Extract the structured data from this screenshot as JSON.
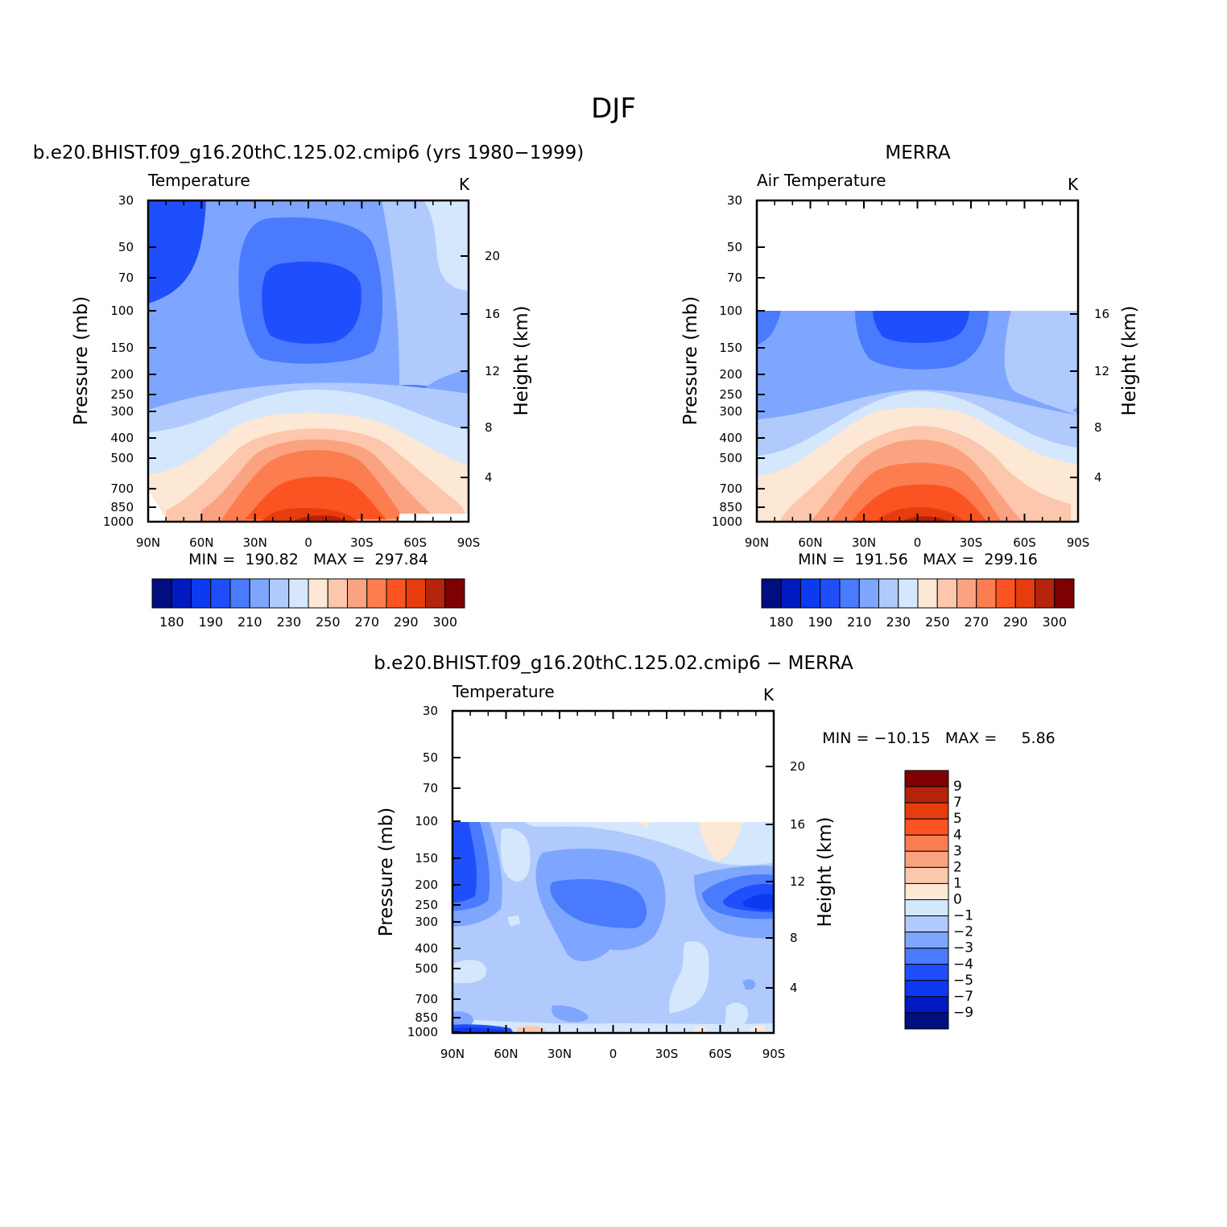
{
  "page_title": "DJF",
  "colors": {
    "main_scale": [
      "#000e7f",
      "#001ac1",
      "#0b3af0",
      "#1f4ffc",
      "#4a7bff",
      "#7fa6ff",
      "#b1cafd",
      "#d5e7fd",
      "#fde7d5",
      "#fcc7ac",
      "#fba281",
      "#fb7d50",
      "#fb5322",
      "#e63c0e",
      "#b4230a",
      "#7f0000"
    ],
    "diff_scale": [
      "#000e7f",
      "#001ac1",
      "#0b3af0",
      "#1f4ffc",
      "#4a7bff",
      "#7fa6ff",
      "#b1cafd",
      "#d5e7fd",
      "#fde7d5",
      "#fcc7ac",
      "#fba281",
      "#fb7d50",
      "#fb5322",
      "#e63c0e",
      "#b4230a",
      "#7f0000"
    ]
  },
  "chart_data": [
    {
      "type": "heatmap",
      "title": "b.e20.BHIST.f09_g16.20thC.125.02.cmip6 (yrs 1980−1999)",
      "left_label": "Temperature",
      "units": "K",
      "xlabel": "",
      "ylabel": "Pressure (mb)",
      "ylabel_right": "Height (km)",
      "x_ticks": [
        "90N",
        "60N",
        "30N",
        "0",
        "30S",
        "60S",
        "90S"
      ],
      "y_ticks": [
        "30",
        "50",
        "70",
        "100",
        "150",
        "200",
        "250",
        "300",
        "400",
        "500",
        "700",
        "850",
        "1000"
      ],
      "y_ticks_right": [
        "20",
        "16",
        "12",
        "8",
        "4"
      ],
      "x_range": [
        90,
        -90
      ],
      "y_range_mb": [
        1000,
        30
      ],
      "min": 190.82,
      "max": 297.84,
      "stats": "MIN =  190.82   MAX =  297.84",
      "colorbar_labels": [
        "180",
        "190",
        "210",
        "230",
        "250",
        "270",
        "290",
        "300"
      ]
    },
    {
      "type": "heatmap",
      "title": "MERRA",
      "left_label": "Air Temperature",
      "units": "K",
      "xlabel": "",
      "ylabel": "Pressure (mb)",
      "ylabel_right": "Height (km)",
      "x_ticks": [
        "90N",
        "60N",
        "30N",
        "0",
        "30S",
        "60S",
        "90S"
      ],
      "y_ticks": [
        "30",
        "50",
        "70",
        "100",
        "150",
        "200",
        "250",
        "300",
        "400",
        "500",
        "700",
        "850",
        "1000"
      ],
      "y_ticks_right": [
        "16",
        "12",
        "8",
        "4"
      ],
      "x_range": [
        90,
        -90
      ],
      "y_range_mb": [
        1000,
        30
      ],
      "data_top_mb": 100,
      "min": 191.56,
      "max": 299.16,
      "stats": "MIN =  191.56   MAX =  299.16",
      "colorbar_labels": [
        "180",
        "190",
        "210",
        "230",
        "250",
        "270",
        "290",
        "300"
      ]
    },
    {
      "type": "heatmap",
      "title": "b.e20.BHIST.f09_g16.20thC.125.02.cmip6 − MERRA",
      "left_label": "Temperature",
      "units": "K",
      "xlabel": "",
      "ylabel": "Pressure (mb)",
      "ylabel_right": "Height (km)",
      "x_ticks": [
        "90N",
        "60N",
        "30N",
        "0",
        "30S",
        "60S",
        "90S"
      ],
      "y_ticks": [
        "30",
        "50",
        "70",
        "100",
        "150",
        "200",
        "250",
        "300",
        "400",
        "500",
        "700",
        "850",
        "1000"
      ],
      "y_ticks_right": [
        "20",
        "16",
        "12",
        "8",
        "4"
      ],
      "x_range": [
        90,
        -90
      ],
      "y_range_mb": [
        1000,
        30
      ],
      "data_top_mb": 100,
      "min": -10.15,
      "max": 5.86,
      "stats": "MIN = −10.15   MAX =     5.86",
      "colorbar_labels": [
        "9",
        "7",
        "5",
        "4",
        "3",
        "2",
        "1",
        "0",
        "−1",
        "−2",
        "−3",
        "−4",
        "−5",
        "−7",
        "−9"
      ]
    }
  ]
}
